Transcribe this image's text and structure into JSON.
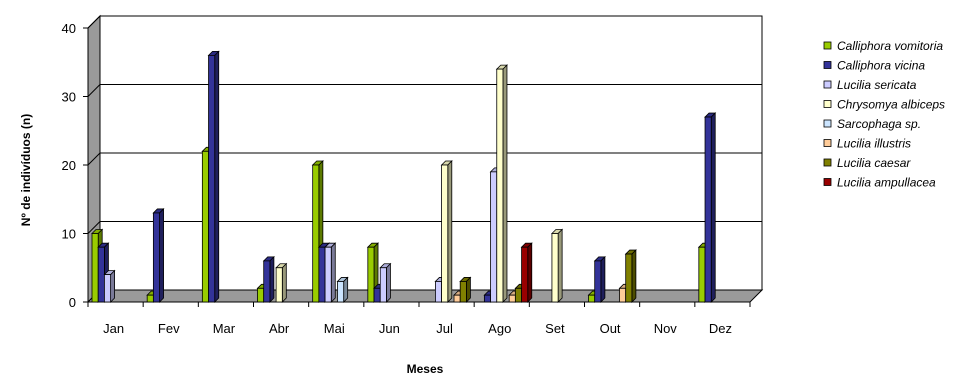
{
  "chart_data": {
    "type": "bar",
    "xlabel": "Meses",
    "ylabel": "Nº de indivíduos (n)",
    "ylim": [
      0,
      40
    ],
    "yticks": [
      0,
      10,
      20,
      30,
      40
    ],
    "categories": [
      "Jan",
      "Fev",
      "Mar",
      "Abr",
      "Mai",
      "Jun",
      "Jul",
      "Ago",
      "Set",
      "Out",
      "Nov",
      "Dez"
    ],
    "legend_position": "right",
    "grid": true,
    "style": "3d",
    "series": [
      {
        "name": "Calliphora vomitoria",
        "color": "#99cc00",
        "values": [
          10,
          1,
          22,
          2,
          20,
          8,
          0,
          0,
          0,
          1,
          0,
          8
        ]
      },
      {
        "name": "Calliphora vicina",
        "color": "#333399",
        "values": [
          8,
          13,
          36,
          6,
          8,
          2,
          0,
          1,
          0,
          6,
          0,
          27
        ]
      },
      {
        "name": "Lucilia sericata",
        "color": "#ccccff",
        "values": [
          4,
          0,
          0,
          0,
          8,
          5,
          3,
          19,
          0,
          0,
          0,
          0
        ]
      },
      {
        "name": "Chrysomya albiceps",
        "color": "#ffffcc",
        "values": [
          0,
          0,
          0,
          5,
          0,
          0,
          20,
          34,
          10,
          0,
          0,
          0
        ]
      },
      {
        "name": "Sarcophaga sp.",
        "color": "#cce5ff",
        "values": [
          0,
          0,
          0,
          0,
          3,
          0,
          0,
          0,
          0,
          0,
          0,
          0
        ]
      },
      {
        "name": "Lucilia illustris",
        "color": "#ffcc99",
        "values": [
          0,
          0,
          0,
          0,
          0,
          0,
          1,
          1,
          0,
          2,
          0,
          0
        ]
      },
      {
        "name": "Lucilia caesar",
        "color": "#808000",
        "values": [
          0,
          0,
          0,
          0,
          0,
          0,
          3,
          2,
          0,
          7,
          0,
          0
        ]
      },
      {
        "name": "Lucilia ampullacea",
        "color": "#990000",
        "values": [
          0,
          0,
          0,
          0,
          0,
          0,
          0,
          8,
          0,
          0,
          0,
          0
        ]
      }
    ]
  }
}
